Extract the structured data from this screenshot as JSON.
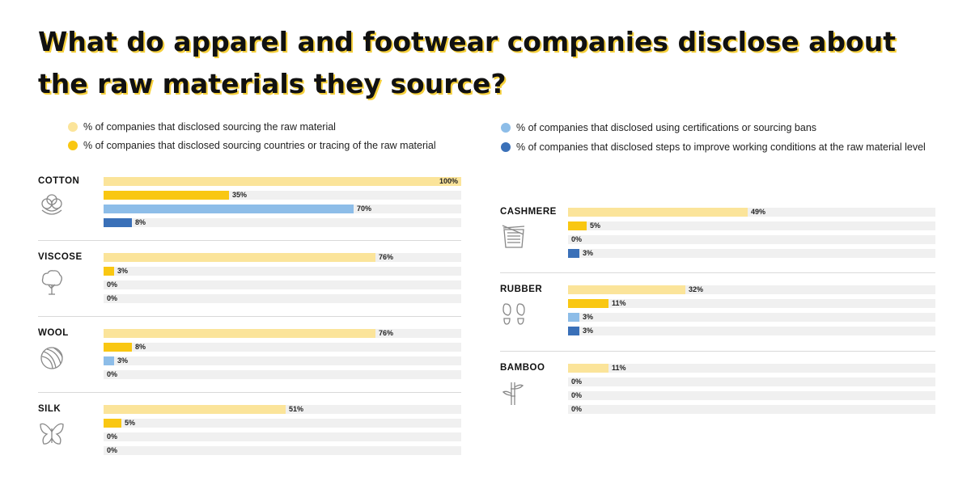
{
  "title_lines": [
    "What do apparel and footwear companies disclose about",
    "the raw materials they source?"
  ],
  "legend": [
    {
      "label": "% of companies that disclosed sourcing the raw material",
      "color": "#fbe49a"
    },
    {
      "label": "% of companies that disclosed sourcing countries or tracing of the raw material",
      "color": "#f9c712"
    },
    {
      "label": "% of companies that disclosed using certifications or sourcing bans",
      "color": "#8dbde8"
    },
    {
      "label": "% of companies that disclosed steps to improve working conditions at the raw material level",
      "color": "#3a70b8"
    }
  ],
  "chart_data": {
    "type": "bar",
    "orientation": "horizontal",
    "unit": "%",
    "ylim": [
      0,
      100
    ],
    "series_colors": [
      "#fbe49a",
      "#f9c712",
      "#8dbde8",
      "#3a70b8"
    ],
    "materials": [
      {
        "name": "COTTON",
        "icon": "cotton-icon",
        "values": [
          100,
          35,
          70,
          8
        ],
        "labels": [
          "100%",
          "35%",
          "70%",
          "8%"
        ]
      },
      {
        "name": "VISCOSE",
        "icon": "tree-icon",
        "values": [
          76,
          3,
          0,
          0
        ],
        "labels": [
          "76%",
          "3%",
          "0%",
          "0%"
        ]
      },
      {
        "name": "WOOL",
        "icon": "yarn-ball-icon",
        "values": [
          76,
          8,
          3,
          0
        ],
        "labels": [
          "76%",
          "8%",
          "3%",
          "0%"
        ]
      },
      {
        "name": "SILK",
        "icon": "butterfly-icon",
        "values": [
          51,
          5,
          0,
          0
        ],
        "labels": [
          "51%",
          "5%",
          "0%",
          "0%"
        ]
      },
      {
        "name": "CASHMERE",
        "icon": "knitting-icon",
        "values": [
          49,
          5,
          0,
          3
        ],
        "labels": [
          "49%",
          "5%",
          "0%",
          "3%"
        ]
      },
      {
        "name": "RUBBER",
        "icon": "shoe-soles-icon",
        "values": [
          32,
          11,
          3,
          3
        ],
        "labels": [
          "32%",
          "11%",
          "3%",
          "3%"
        ]
      },
      {
        "name": "BAMBOO",
        "icon": "bamboo-icon",
        "values": [
          11,
          0,
          0,
          0
        ],
        "labels": [
          "11%",
          "0%",
          "0%",
          "0%"
        ]
      }
    ]
  }
}
